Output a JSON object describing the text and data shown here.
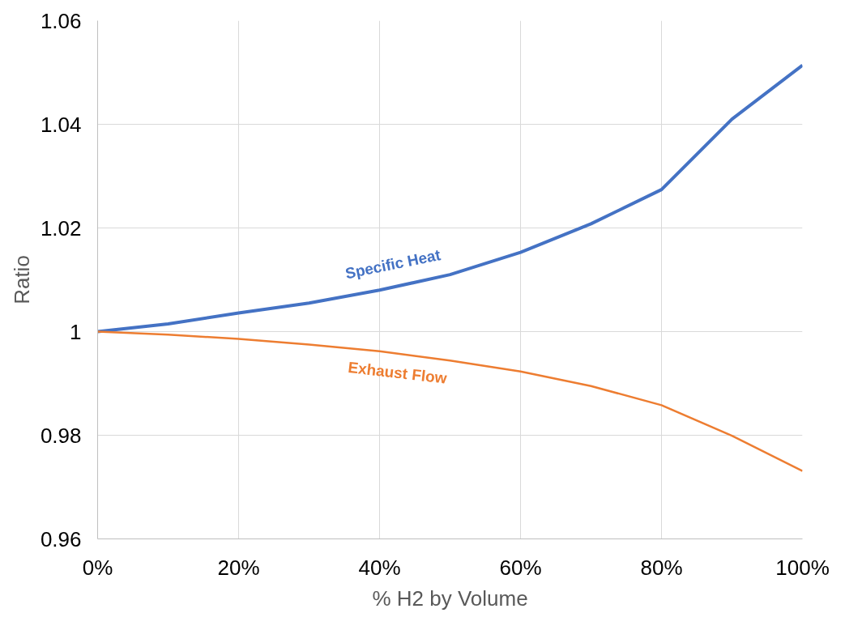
{
  "chart_data": {
    "type": "line",
    "xlabel": "% H2 by Volume",
    "ylabel": "Ratio",
    "x": [
      0,
      10,
      20,
      30,
      40,
      50,
      60,
      70,
      80,
      90,
      100
    ],
    "series": [
      {
        "name": "Specific Heat",
        "color": "#4472c4",
        "values": [
          1.0,
          1.0015,
          1.0036,
          1.0055,
          1.008,
          1.011,
          1.0153,
          1.0208,
          1.0274,
          1.041,
          1.0514
        ]
      },
      {
        "name": "Exhaust Flow",
        "color": "#ed7d31",
        "values": [
          1.0,
          0.9994,
          0.9986,
          0.9975,
          0.9962,
          0.9944,
          0.9923,
          0.9895,
          0.9858,
          0.9799,
          0.9731
        ]
      }
    ],
    "xlim": [
      0,
      100
    ],
    "ylim": [
      0.96,
      1.06
    ],
    "xticks": [
      {
        "value": 0,
        "label": "0%"
      },
      {
        "value": 20,
        "label": "20%"
      },
      {
        "value": 40,
        "label": "40%"
      },
      {
        "value": 60,
        "label": "60%"
      },
      {
        "value": 80,
        "label": "80%"
      },
      {
        "value": 100,
        "label": "100%"
      }
    ],
    "yticks": [
      0.96,
      0.98,
      1,
      1.02,
      1.04,
      1.06
    ],
    "grid": true,
    "marker": "none",
    "line_style": "solid"
  }
}
